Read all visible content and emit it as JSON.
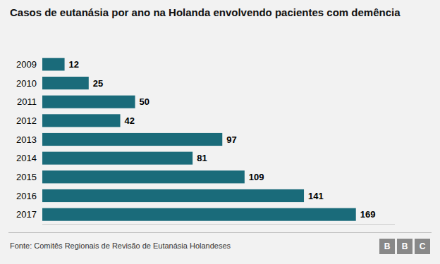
{
  "chart_data": {
    "type": "bar",
    "orientation": "horizontal",
    "title": "Casos de eutanásia por ano na Holanda envolvendo pacientes com demência",
    "categories": [
      "2009",
      "2010",
      "2011",
      "2012",
      "2013",
      "2014",
      "2015",
      "2016",
      "2017"
    ],
    "values": [
      12,
      25,
      50,
      42,
      97,
      81,
      109,
      141,
      169
    ],
    "color": "#1a6b7a",
    "xlim": [
      0,
      190
    ],
    "grid": false,
    "data_labels": true,
    "tick_labels": "y",
    "source": "Fonte: Comitês Regionais de Revisão de Eutanásia Holandeses",
    "logo": [
      "B",
      "B",
      "C"
    ]
  }
}
